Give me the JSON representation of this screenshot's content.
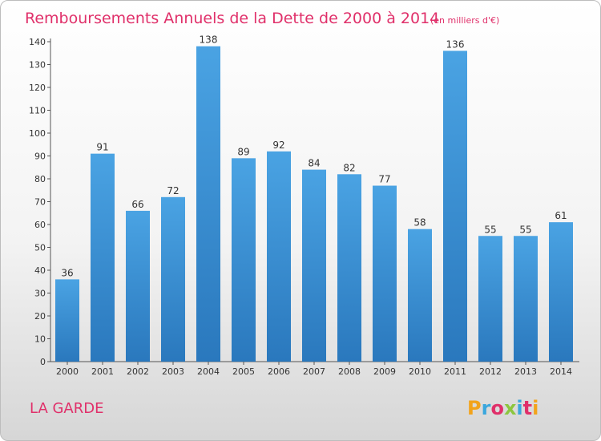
{
  "chart_data": {
    "type": "bar",
    "title": "Remboursements Annuels de la Dette de 2000 à 2014",
    "subtitle": "(en milliers d'€)",
    "categories": [
      "2000",
      "2001",
      "2002",
      "2003",
      "2004",
      "2005",
      "2006",
      "2007",
      "2008",
      "2009",
      "2010",
      "2011",
      "2012",
      "2013",
      "2014"
    ],
    "values": [
      36,
      91,
      66,
      72,
      138,
      89,
      92,
      84,
      82,
      77,
      58,
      136,
      55,
      55,
      61
    ],
    "ylim": [
      0,
      140
    ],
    "yticks": [
      0,
      10,
      20,
      30,
      40,
      50,
      60,
      70,
      80,
      90,
      100,
      110,
      120,
      130,
      140
    ],
    "grid": false,
    "bar_color": "#4aa3e3",
    "bar_color_dark": "#2a78bd"
  },
  "footer": {
    "town": "LA GARDE",
    "logo": "Proxiti",
    "logo_colors": [
      "#f2a31b",
      "#3aa7dd",
      "#e0306a",
      "#8cc63f",
      "#3aa7dd",
      "#e0306a",
      "#f2a31b"
    ]
  }
}
